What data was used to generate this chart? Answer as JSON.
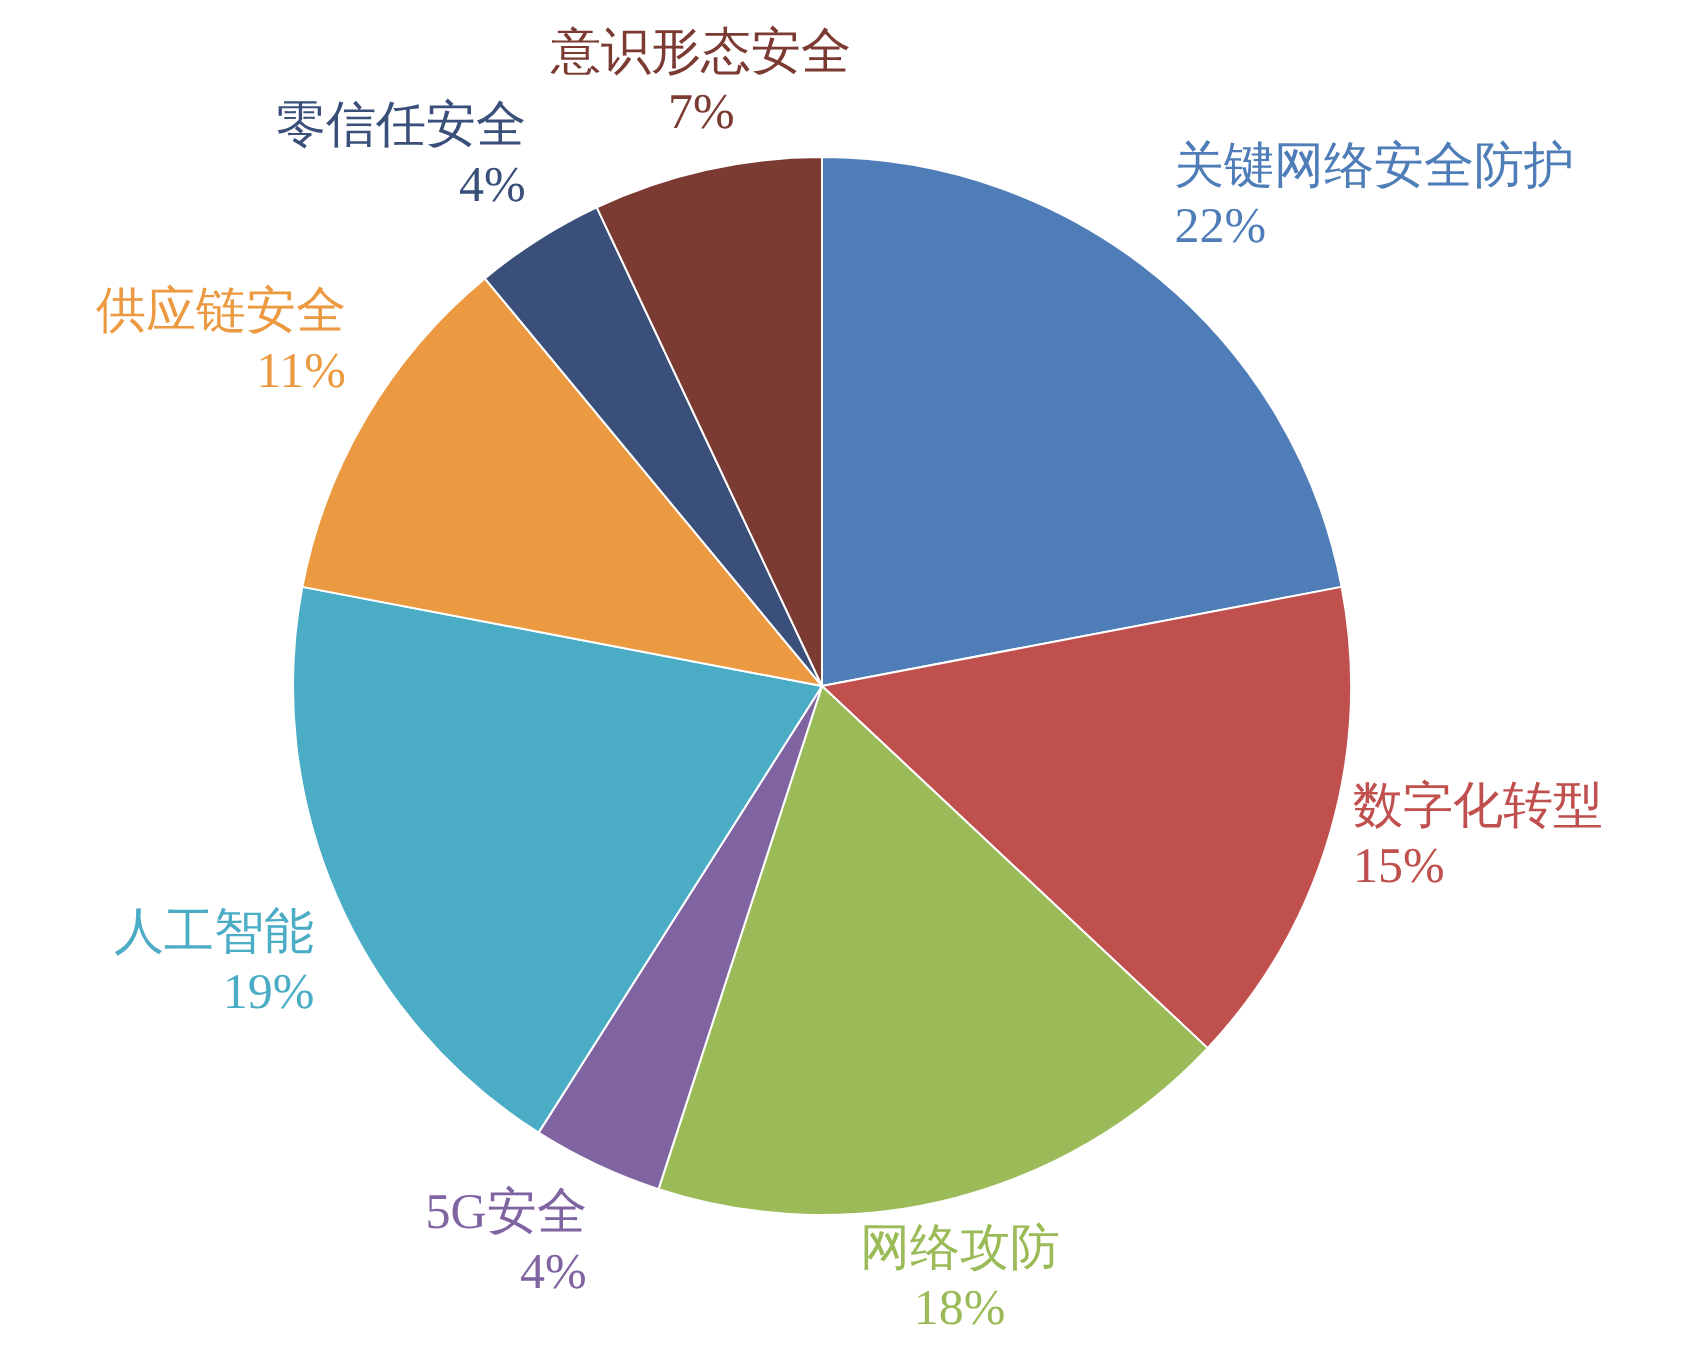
{
  "chart_data": {
    "type": "pie",
    "categories": [
      "关键网络安全防护",
      "数字化转型",
      "网络攻防",
      "5G安全",
      "人工智能",
      "供应链安全",
      "零信任安全",
      "意识形态安全"
    ],
    "values": [
      22,
      15,
      18,
      4,
      19,
      11,
      4,
      7
    ],
    "value_labels": [
      "22%",
      "15%",
      "18%",
      "4%",
      "19%",
      "11%",
      "4%",
      "7%"
    ],
    "colors": [
      "#4f7db8",
      "#c0504d",
      "#9bbb59",
      "#8064a2",
      "#4bacc6",
      "#eb9a42",
      "#3a4f7a",
      "#7b3a32"
    ],
    "legend": false
  }
}
